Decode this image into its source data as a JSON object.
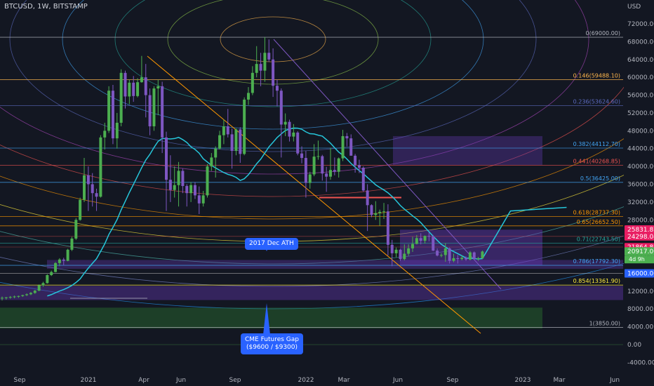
{
  "header": {
    "symbol": "BTCUSD, 1W, BITSTAMP"
  },
  "callouts": {
    "ath": "2017 Dec ATH",
    "cme_line1": "CME Futures Gap",
    "cme_line2": "($9600 / $9300)"
  },
  "colors": {
    "background": "#131722",
    "bull": "#26a69a",
    "candle_up": "#4caf50",
    "candle_down": "#7e57c2",
    "ma": "#26c6da",
    "callout": "#2962ff"
  },
  "chart_data": {
    "type": "candlestick",
    "title": "BTCUSD, 1W, BITSTAMP",
    "yaxis_label": "USD",
    "ylim": [
      -6000,
      76000
    ],
    "y_ticks": [
      "72000.00",
      "68000.00",
      "64000.00",
      "60000.00",
      "56000.00",
      "52000.00",
      "48000.00",
      "44000.00",
      "40000.00",
      "36000.00",
      "32000.00",
      "28000.00",
      "24000.00",
      "20000.00",
      "16000.00",
      "12000.00",
      "8000.00",
      "4000.00",
      "0.00",
      "-4000.00"
    ],
    "x_ticks": [
      "Sep",
      "2021",
      "Apr",
      "Jun",
      "Sep",
      "2022",
      "Mar",
      "Jun",
      "Sep",
      "2023",
      "Mar",
      "Jun"
    ],
    "price_labels": [
      {
        "value": 25831.85,
        "text": "25831.85",
        "color": "#e91e63"
      },
      {
        "value": 24298.04,
        "text": "24298.04",
        "color": "#e91e63"
      },
      {
        "value": 21864.86,
        "text": "21864.86",
        "color": "#e91e63"
      },
      {
        "value": 20917.0,
        "text": "20917.00",
        "color": "#4caf50"
      },
      {
        "value": 16000.0,
        "text": "16000.00",
        "color": "#2962ff"
      }
    ],
    "countdown": "4d 9h",
    "fib_levels": [
      {
        "ratio": 0,
        "price": 69000.0,
        "label": "0(69000.00)",
        "color": "#b2b5be"
      },
      {
        "ratio": 0.146,
        "price": 59488.1,
        "label": "0.146(59488.10)",
        "color": "#ffb74d"
      },
      {
        "ratio": 0.236,
        "price": 53624.6,
        "label": "0.236(53624.60)",
        "color": "#5c6bc0"
      },
      {
        "ratio": 0.382,
        "price": 44112.7,
        "label": "0.382(44112.70)",
        "color": "#42a5f5"
      },
      {
        "ratio": 0.441,
        "price": 40268.85,
        "label": "0.441(40268.85)",
        "color": "#ef5350"
      },
      {
        "ratio": 0.5,
        "price": 36425.0,
        "label": "0.5(36425.00)",
        "color": "#42a5f5"
      },
      {
        "ratio": 0.618,
        "price": 28737.3,
        "label": "0.618(28737.30)",
        "color": "#ff9800"
      },
      {
        "ratio": 0.65,
        "price": 26652.5,
        "label": "0.65(26652.50)",
        "color": "#ff9800"
      },
      {
        "ratio": 0.71,
        "price": 22743.5,
        "label": "0.71(22743.50)",
        "color": "#26a69a"
      },
      {
        "ratio": 0.786,
        "price": 17792.3,
        "label": "0.786(17792.30)",
        "color": "#42a5f5"
      },
      {
        "ratio": 0.854,
        "price": 13361.9,
        "label": "0.854(13361.90)",
        "color": "#ffeb3b"
      },
      {
        "ratio": 1,
        "price": 3850.0,
        "label": "1(3850.00)",
        "color": "#b2b5be"
      }
    ],
    "series": [
      {
        "name": "BTCUSD",
        "ohlc": [
          [
            10400,
            10800,
            9900,
            10500
          ],
          [
            10500,
            10700,
            10100,
            10600
          ],
          [
            10600,
            10900,
            10300,
            10700
          ],
          [
            10700,
            11000,
            10400,
            10800
          ],
          [
            10800,
            11000,
            10500,
            10900
          ],
          [
            10900,
            11200,
            10700,
            11100
          ],
          [
            11100,
            11500,
            10900,
            11300
          ],
          [
            11300,
            11800,
            11100,
            11600
          ],
          [
            11600,
            12300,
            11400,
            12100
          ],
          [
            12100,
            13500,
            12000,
            13300
          ],
          [
            13300,
            14100,
            13000,
            13800
          ],
          [
            13800,
            15800,
            13700,
            15600
          ],
          [
            15600,
            16600,
            15400,
            16300
          ],
          [
            16300,
            18500,
            16200,
            18300
          ],
          [
            18300,
            19400,
            17600,
            19100
          ],
          [
            19100,
            19500,
            17800,
            18800
          ],
          [
            18800,
            21500,
            18700,
            21300
          ],
          [
            21300,
            24200,
            21000,
            23800
          ],
          [
            23800,
            28400,
            23500,
            28000
          ],
          [
            28000,
            33000,
            27800,
            32500
          ],
          [
            32500,
            41900,
            32000,
            38000
          ],
          [
            38000,
            40000,
            30000,
            36000
          ],
          [
            36000,
            38500,
            31000,
            34000
          ],
          [
            34000,
            35000,
            30000,
            33200
          ],
          [
            33200,
            47000,
            33000,
            46500
          ],
          [
            46500,
            49800,
            43800,
            48000
          ],
          [
            48000,
            58000,
            47500,
            57000
          ],
          [
            57000,
            58300,
            45000,
            46300
          ],
          [
            46300,
            52000,
            44000,
            49800
          ],
          [
            49800,
            61800,
            49000,
            61000
          ],
          [
            61000,
            61500,
            53000,
            55700
          ],
          [
            55700,
            59500,
            54000,
            58800
          ],
          [
            58800,
            60300,
            54500,
            55800
          ],
          [
            55800,
            59800,
            55500,
            58900
          ],
          [
            58900,
            64800,
            58800,
            60000
          ],
          [
            60000,
            63000,
            51000,
            56000
          ],
          [
            56000,
            57500,
            47000,
            49000
          ],
          [
            49000,
            58000,
            48000,
            57500
          ],
          [
            57500,
            59500,
            51500,
            58000
          ],
          [
            58000,
            59000,
            43000,
            46500
          ],
          [
            46500,
            47800,
            30000,
            37000
          ],
          [
            37000,
            42500,
            32000,
            34700
          ],
          [
            34700,
            40000,
            33000,
            35800
          ],
          [
            35800,
            41000,
            31000,
            39000
          ],
          [
            39000,
            39500,
            34000,
            35600
          ],
          [
            35600,
            36000,
            31000,
            34000
          ],
          [
            34000,
            36500,
            32000,
            35800
          ],
          [
            35800,
            36500,
            32700,
            33500
          ],
          [
            33500,
            35500,
            29300,
            31700
          ],
          [
            31700,
            34500,
            31000,
            33500
          ],
          [
            33500,
            40500,
            33000,
            40000
          ],
          [
            40000,
            43000,
            39000,
            42000
          ],
          [
            42000,
            44500,
            37500,
            44000
          ],
          [
            44000,
            48000,
            43800,
            47000
          ],
          [
            47000,
            50500,
            45000,
            49000
          ],
          [
            49000,
            52900,
            46500,
            47200
          ],
          [
            47200,
            48500,
            39500,
            43500
          ],
          [
            43500,
            48500,
            42500,
            48300
          ],
          [
            48300,
            48800,
            40800,
            42800
          ],
          [
            42800,
            55500,
            42500,
            55000
          ],
          [
            55000,
            57800,
            53800,
            56500
          ],
          [
            56500,
            62500,
            56000,
            61000
          ],
          [
            61000,
            67000,
            60000,
            63000
          ],
          [
            63000,
            65500,
            58000,
            61500
          ],
          [
            61500,
            69000,
            59000,
            65500
          ],
          [
            65500,
            68500,
            63500,
            64000
          ],
          [
            64000,
            66500,
            55600,
            58100
          ],
          [
            58100,
            59500,
            53500,
            57000
          ],
          [
            57000,
            57500,
            42000,
            49400
          ],
          [
            49400,
            51900,
            46800,
            50000
          ],
          [
            50000,
            50500,
            45600,
            46700
          ],
          [
            46700,
            49500,
            45600,
            47600
          ],
          [
            47600,
            47900,
            42500,
            42900
          ],
          [
            42900,
            44500,
            40700,
            41900
          ],
          [
            41900,
            43500,
            33000,
            36300
          ],
          [
            36300,
            38800,
            35000,
            38200
          ],
          [
            38200,
            45000,
            37800,
            42200
          ],
          [
            42200,
            45800,
            41500,
            42300
          ],
          [
            42300,
            42600,
            36800,
            38400
          ],
          [
            38400,
            39900,
            34300,
            37700
          ],
          [
            37700,
            44200,
            37000,
            39200
          ],
          [
            39200,
            42000,
            38000,
            38800
          ],
          [
            38800,
            42000,
            37500,
            41800
          ],
          [
            41800,
            48200,
            41200,
            46800
          ],
          [
            46800,
            47500,
            44500,
            46300
          ],
          [
            46300,
            47200,
            42700,
            42400
          ],
          [
            42400,
            42800,
            38600,
            40300
          ],
          [
            40300,
            41500,
            38500,
            39700
          ],
          [
            39700,
            40000,
            34300,
            34600
          ],
          [
            34600,
            36000,
            25500,
            31300
          ],
          [
            31300,
            31500,
            28600,
            29100
          ],
          [
            29100,
            32200,
            28000,
            29500
          ],
          [
            29500,
            30300,
            26700,
            29800
          ],
          [
            29800,
            31800,
            28200,
            29900
          ],
          [
            29900,
            31500,
            20000,
            22400
          ],
          [
            22400,
            23500,
            17600,
            20500
          ],
          [
            20500,
            21800,
            19600,
            21300
          ],
          [
            21300,
            21500,
            18800,
            19200
          ],
          [
            19200,
            22500,
            18900,
            20400
          ],
          [
            20400,
            22500,
            19900,
            21600
          ],
          [
            21600,
            24200,
            20800,
            22600
          ],
          [
            22600,
            24600,
            22500,
            23900
          ],
          [
            23900,
            25000,
            22500,
            23300
          ],
          [
            23300,
            24500,
            22700,
            24400
          ],
          [
            24400,
            25200,
            23200,
            24300
          ],
          [
            24300,
            24600,
            21000,
            21100
          ],
          [
            21100,
            21600,
            19800,
            20000
          ],
          [
            20000,
            20500,
            19600,
            20100
          ],
          [
            20100,
            22800,
            18600,
            21600
          ],
          [
            21600,
            21800,
            18200,
            18800
          ],
          [
            18800,
            20400,
            18500,
            19400
          ],
          [
            19400,
            20100,
            18200,
            19200
          ],
          [
            19200,
            20000,
            18900,
            19500
          ],
          [
            19500,
            19800,
            18800,
            19100
          ],
          [
            19100,
            21000,
            18900,
            20700
          ],
          [
            20700,
            20900,
            19300,
            19200
          ],
          [
            19200,
            19700,
            18800,
            19400
          ],
          [
            19400,
            21100,
            19200,
            20900
          ]
        ]
      }
    ]
  }
}
